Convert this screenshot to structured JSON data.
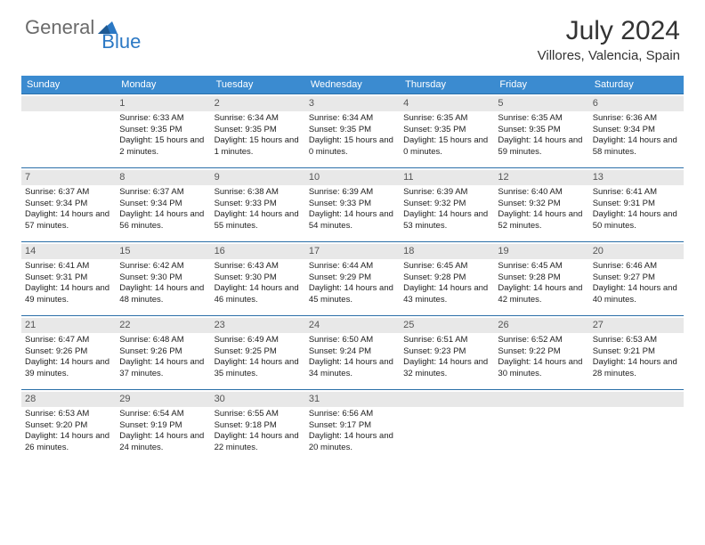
{
  "logo": {
    "part1": "General",
    "part2": "Blue"
  },
  "title": "July 2024",
  "location": "Villores, Valencia, Spain",
  "colors": {
    "header_bg": "#3b8bd0",
    "header_text": "#ffffff",
    "daynum_bg": "#e8e8e8",
    "week_border": "#2b6fa8",
    "body_text": "#222222",
    "logo_gray": "#6b6b6b",
    "logo_blue": "#2b78c4"
  },
  "day_headers": [
    "Sunday",
    "Monday",
    "Tuesday",
    "Wednesday",
    "Thursday",
    "Friday",
    "Saturday"
  ],
  "weeks": [
    [
      {
        "n": "",
        "sr": "",
        "ss": "",
        "dl": ""
      },
      {
        "n": "1",
        "sr": "Sunrise: 6:33 AM",
        "ss": "Sunset: 9:35 PM",
        "dl": "Daylight: 15 hours and 2 minutes."
      },
      {
        "n": "2",
        "sr": "Sunrise: 6:34 AM",
        "ss": "Sunset: 9:35 PM",
        "dl": "Daylight: 15 hours and 1 minutes."
      },
      {
        "n": "3",
        "sr": "Sunrise: 6:34 AM",
        "ss": "Sunset: 9:35 PM",
        "dl": "Daylight: 15 hours and 0 minutes."
      },
      {
        "n": "4",
        "sr": "Sunrise: 6:35 AM",
        "ss": "Sunset: 9:35 PM",
        "dl": "Daylight: 15 hours and 0 minutes."
      },
      {
        "n": "5",
        "sr": "Sunrise: 6:35 AM",
        "ss": "Sunset: 9:35 PM",
        "dl": "Daylight: 14 hours and 59 minutes."
      },
      {
        "n": "6",
        "sr": "Sunrise: 6:36 AM",
        "ss": "Sunset: 9:34 PM",
        "dl": "Daylight: 14 hours and 58 minutes."
      }
    ],
    [
      {
        "n": "7",
        "sr": "Sunrise: 6:37 AM",
        "ss": "Sunset: 9:34 PM",
        "dl": "Daylight: 14 hours and 57 minutes."
      },
      {
        "n": "8",
        "sr": "Sunrise: 6:37 AM",
        "ss": "Sunset: 9:34 PM",
        "dl": "Daylight: 14 hours and 56 minutes."
      },
      {
        "n": "9",
        "sr": "Sunrise: 6:38 AM",
        "ss": "Sunset: 9:33 PM",
        "dl": "Daylight: 14 hours and 55 minutes."
      },
      {
        "n": "10",
        "sr": "Sunrise: 6:39 AM",
        "ss": "Sunset: 9:33 PM",
        "dl": "Daylight: 14 hours and 54 minutes."
      },
      {
        "n": "11",
        "sr": "Sunrise: 6:39 AM",
        "ss": "Sunset: 9:32 PM",
        "dl": "Daylight: 14 hours and 53 minutes."
      },
      {
        "n": "12",
        "sr": "Sunrise: 6:40 AM",
        "ss": "Sunset: 9:32 PM",
        "dl": "Daylight: 14 hours and 52 minutes."
      },
      {
        "n": "13",
        "sr": "Sunrise: 6:41 AM",
        "ss": "Sunset: 9:31 PM",
        "dl": "Daylight: 14 hours and 50 minutes."
      }
    ],
    [
      {
        "n": "14",
        "sr": "Sunrise: 6:41 AM",
        "ss": "Sunset: 9:31 PM",
        "dl": "Daylight: 14 hours and 49 minutes."
      },
      {
        "n": "15",
        "sr": "Sunrise: 6:42 AM",
        "ss": "Sunset: 9:30 PM",
        "dl": "Daylight: 14 hours and 48 minutes."
      },
      {
        "n": "16",
        "sr": "Sunrise: 6:43 AM",
        "ss": "Sunset: 9:30 PM",
        "dl": "Daylight: 14 hours and 46 minutes."
      },
      {
        "n": "17",
        "sr": "Sunrise: 6:44 AM",
        "ss": "Sunset: 9:29 PM",
        "dl": "Daylight: 14 hours and 45 minutes."
      },
      {
        "n": "18",
        "sr": "Sunrise: 6:45 AM",
        "ss": "Sunset: 9:28 PM",
        "dl": "Daylight: 14 hours and 43 minutes."
      },
      {
        "n": "19",
        "sr": "Sunrise: 6:45 AM",
        "ss": "Sunset: 9:28 PM",
        "dl": "Daylight: 14 hours and 42 minutes."
      },
      {
        "n": "20",
        "sr": "Sunrise: 6:46 AM",
        "ss": "Sunset: 9:27 PM",
        "dl": "Daylight: 14 hours and 40 minutes."
      }
    ],
    [
      {
        "n": "21",
        "sr": "Sunrise: 6:47 AM",
        "ss": "Sunset: 9:26 PM",
        "dl": "Daylight: 14 hours and 39 minutes."
      },
      {
        "n": "22",
        "sr": "Sunrise: 6:48 AM",
        "ss": "Sunset: 9:26 PM",
        "dl": "Daylight: 14 hours and 37 minutes."
      },
      {
        "n": "23",
        "sr": "Sunrise: 6:49 AM",
        "ss": "Sunset: 9:25 PM",
        "dl": "Daylight: 14 hours and 35 minutes."
      },
      {
        "n": "24",
        "sr": "Sunrise: 6:50 AM",
        "ss": "Sunset: 9:24 PM",
        "dl": "Daylight: 14 hours and 34 minutes."
      },
      {
        "n": "25",
        "sr": "Sunrise: 6:51 AM",
        "ss": "Sunset: 9:23 PM",
        "dl": "Daylight: 14 hours and 32 minutes."
      },
      {
        "n": "26",
        "sr": "Sunrise: 6:52 AM",
        "ss": "Sunset: 9:22 PM",
        "dl": "Daylight: 14 hours and 30 minutes."
      },
      {
        "n": "27",
        "sr": "Sunrise: 6:53 AM",
        "ss": "Sunset: 9:21 PM",
        "dl": "Daylight: 14 hours and 28 minutes."
      }
    ],
    [
      {
        "n": "28",
        "sr": "Sunrise: 6:53 AM",
        "ss": "Sunset: 9:20 PM",
        "dl": "Daylight: 14 hours and 26 minutes."
      },
      {
        "n": "29",
        "sr": "Sunrise: 6:54 AM",
        "ss": "Sunset: 9:19 PM",
        "dl": "Daylight: 14 hours and 24 minutes."
      },
      {
        "n": "30",
        "sr": "Sunrise: 6:55 AM",
        "ss": "Sunset: 9:18 PM",
        "dl": "Daylight: 14 hours and 22 minutes."
      },
      {
        "n": "31",
        "sr": "Sunrise: 6:56 AM",
        "ss": "Sunset: 9:17 PM",
        "dl": "Daylight: 14 hours and 20 minutes."
      },
      {
        "n": "",
        "sr": "",
        "ss": "",
        "dl": ""
      },
      {
        "n": "",
        "sr": "",
        "ss": "",
        "dl": ""
      },
      {
        "n": "",
        "sr": "",
        "ss": "",
        "dl": ""
      }
    ]
  ]
}
